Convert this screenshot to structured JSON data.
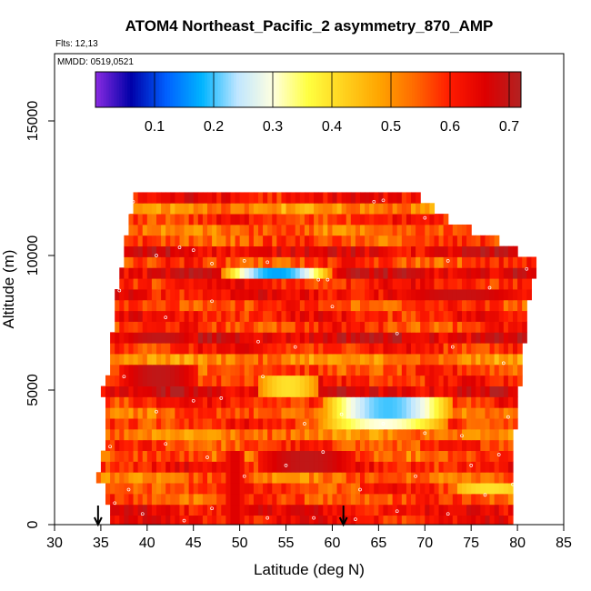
{
  "chart_data": {
    "type": "heatmap",
    "title": "ATOM4 Northeast_Pacific_2 asymmetry_870_AMP",
    "flights_label": "Flts: 12,13",
    "dates_label": "MMDD: 0519,0521",
    "xlabel": "Latitude (deg N)",
    "ylabel": "Altitude (m)",
    "xlim": [
      30,
      85
    ],
    "ylim": [
      0,
      17500
    ],
    "x_ticks": [
      30,
      35,
      40,
      45,
      50,
      55,
      60,
      65,
      70,
      75,
      80,
      85
    ],
    "y_ticks": [
      0,
      5000,
      10000,
      15000
    ],
    "colorbar": {
      "range": [
        0.0,
        0.72
      ],
      "ticks": [
        "0.1",
        "0.2",
        "0.3",
        "0.4",
        "0.5",
        "0.6",
        "0.7"
      ],
      "tick_values": [
        0.1,
        0.2,
        0.3,
        0.4,
        0.5,
        0.6,
        0.7
      ],
      "colors": [
        "#8a2be2",
        "#0000a8",
        "#0060ff",
        "#00b4ff",
        "#bfe6ff",
        "#ffffe0",
        "#ffff40",
        "#ffd21e",
        "#ffa500",
        "#ff6a00",
        "#ff1a00",
        "#dd0000",
        "#b22222"
      ]
    },
    "profile_rows": [
      {
        "alt": 150,
        "x0": 36.0,
        "x1": 79.5,
        "val": 0.62
      },
      {
        "alt": 550,
        "x0": 36.0,
        "x1": 79.5,
        "val": 0.63
      },
      {
        "alt": 950,
        "x0": 35.5,
        "x1": 79.5,
        "val": 0.56
      },
      {
        "alt": 1350,
        "x0": 35.5,
        "x1": 79.5,
        "val": 0.58
      },
      {
        "alt": 1750,
        "x0": 34.5,
        "x1": 79.5,
        "val": 0.54
      },
      {
        "alt": 2150,
        "x0": 35.0,
        "x1": 79.5,
        "val": 0.61
      },
      {
        "alt": 2550,
        "x0": 35.0,
        "x1": 79.5,
        "val": 0.55
      },
      {
        "alt": 2950,
        "x0": 35.5,
        "x1": 79.5,
        "val": 0.57
      },
      {
        "alt": 3350,
        "x0": 35.5,
        "x1": 79.5,
        "val": 0.52
      },
      {
        "alt": 3750,
        "x0": 35.5,
        "x1": 80.0,
        "val": 0.59
      },
      {
        "alt": 4150,
        "x0": 35.5,
        "x1": 80.0,
        "val": 0.55
      },
      {
        "alt": 4550,
        "x0": 35.5,
        "x1": 80.0,
        "val": 0.6
      },
      {
        "alt": 4950,
        "x0": 35.0,
        "x1": 80.0,
        "val": 0.66
      },
      {
        "alt": 5350,
        "x0": 35.5,
        "x1": 80.5,
        "val": 0.6
      },
      {
        "alt": 5750,
        "x0": 36.0,
        "x1": 80.5,
        "val": 0.57
      },
      {
        "alt": 6150,
        "x0": 36.0,
        "x1": 80.5,
        "val": 0.51
      },
      {
        "alt": 6550,
        "x0": 36.0,
        "x1": 80.5,
        "val": 0.6
      },
      {
        "alt": 6950,
        "x0": 36.0,
        "x1": 81.0,
        "val": 0.67
      },
      {
        "alt": 7350,
        "x0": 36.5,
        "x1": 81.0,
        "val": 0.58
      },
      {
        "alt": 7750,
        "x0": 36.5,
        "x1": 81.0,
        "val": 0.61
      },
      {
        "alt": 8150,
        "x0": 36.5,
        "x1": 81.0,
        "val": 0.57
      },
      {
        "alt": 8550,
        "x0": 36.5,
        "x1": 81.5,
        "val": 0.63
      },
      {
        "alt": 8950,
        "x0": 37.0,
        "x1": 81.5,
        "val": 0.61
      },
      {
        "alt": 9350,
        "x0": 37.0,
        "x1": 82.0,
        "val": 0.66
      },
      {
        "alt": 9750,
        "x0": 37.5,
        "x1": 82.0,
        "val": 0.57
      },
      {
        "alt": 10150,
        "x0": 37.5,
        "x1": 80.0,
        "val": 0.65
      },
      {
        "alt": 10550,
        "x0": 37.5,
        "x1": 78.0,
        "val": 0.56
      },
      {
        "alt": 10950,
        "x0": 38.0,
        "x1": 75.0,
        "val": 0.53
      },
      {
        "alt": 11350,
        "x0": 38.0,
        "x1": 72.5,
        "val": 0.59
      },
      {
        "alt": 11750,
        "x0": 38.5,
        "x1": 71.0,
        "val": 0.5
      },
      {
        "alt": 12150,
        "x0": 38.5,
        "x1": 69.5,
        "val": 0.62
      }
    ],
    "features": [
      {
        "alt0": 9050,
        "alt1": 9500,
        "x0": 48.0,
        "x1": 59.5,
        "val": 0.17,
        "edge": 0.5
      },
      {
        "alt0": 3950,
        "alt1": 4550,
        "x0": 59.0,
        "x1": 72.5,
        "val": 0.2,
        "edge": 0.48
      },
      {
        "alt0": 3550,
        "alt1": 3950,
        "x0": 58.5,
        "x1": 72.0,
        "val": 0.3,
        "edge": 0.5
      },
      {
        "alt0": 4950,
        "alt1": 5500,
        "x0": 52.0,
        "x1": 58.0,
        "val": 0.4,
        "edge": 0.5
      },
      {
        "alt0": 1250,
        "alt1": 1650,
        "x0": 73.5,
        "x1": 80.0,
        "val": 0.4,
        "edge": 0.45
      },
      {
        "alt0": 12250,
        "alt1": 12500,
        "x0": 64.0,
        "x1": 66.0,
        "val": 0.68,
        "edge": 0.62
      },
      {
        "alt0": 2150,
        "alt1": 2550,
        "x0": 52.0,
        "x1": 62.0,
        "val": 0.7,
        "edge": 0.62
      },
      {
        "alt0": 5350,
        "alt1": 5750,
        "x0": 37.0,
        "x1": 45.0,
        "val": 0.7,
        "edge": 0.62
      },
      {
        "alt0": 6750,
        "alt1": 7150,
        "x0": 37.0,
        "x1": 45.0,
        "val": 0.7,
        "edge": 0.63
      },
      {
        "alt0": 8350,
        "alt1": 8750,
        "x0": 67.0,
        "x1": 80.0,
        "val": 0.69,
        "edge": 0.62
      },
      {
        "alt0": 150,
        "alt1": 2550,
        "x0": 48.5,
        "x1": 50.0,
        "val": 0.66,
        "edge": 0.63
      }
    ],
    "arrows_at_latitude": [
      34.7,
      61.2
    ],
    "sample_points": [
      [
        38.0,
        11600
      ],
      [
        38.5,
        12000
      ],
      [
        41.0,
        10000
      ],
      [
        43.5,
        10300
      ],
      [
        45.0,
        10200
      ],
      [
        47.0,
        9700
      ],
      [
        50.5,
        9800
      ],
      [
        53.0,
        9750
      ],
      [
        58.5,
        9100
      ],
      [
        59.5,
        9100
      ],
      [
        64.5,
        12000
      ],
      [
        65.5,
        12050
      ],
      [
        70.0,
        11400
      ],
      [
        72.5,
        9800
      ],
      [
        77.0,
        8800
      ],
      [
        81.0,
        9500
      ],
      [
        37.0,
        8700
      ],
      [
        42.0,
        7700
      ],
      [
        47.0,
        8300
      ],
      [
        52.0,
        6800
      ],
      [
        56.0,
        6600
      ],
      [
        60.0,
        8100
      ],
      [
        67.0,
        7100
      ],
      [
        73.0,
        6600
      ],
      [
        78.5,
        6000
      ],
      [
        37.5,
        5500
      ],
      [
        41.0,
        4200
      ],
      [
        45.0,
        4600
      ],
      [
        48.0,
        4700
      ],
      [
        52.5,
        5500
      ],
      [
        57.0,
        3750
      ],
      [
        61.0,
        4100
      ],
      [
        65.5,
        3750
      ],
      [
        70.0,
        3400
      ],
      [
        74.0,
        3300
      ],
      [
        79.0,
        4000
      ],
      [
        36.0,
        2900
      ],
      [
        38.0,
        1300
      ],
      [
        42.0,
        3000
      ],
      [
        46.5,
        2500
      ],
      [
        50.5,
        1800
      ],
      [
        55.0,
        2200
      ],
      [
        59.0,
        2700
      ],
      [
        63.0,
        1300
      ],
      [
        69.0,
        1800
      ],
      [
        75.0,
        2200
      ],
      [
        78.0,
        2600
      ],
      [
        36.5,
        800
      ],
      [
        39.5,
        400
      ],
      [
        44.0,
        150
      ],
      [
        47.0,
        600
      ],
      [
        53.0,
        250
      ],
      [
        58.0,
        250
      ],
      [
        62.5,
        200
      ],
      [
        67.0,
        500
      ],
      [
        72.5,
        400
      ],
      [
        76.5,
        1100
      ],
      [
        79.5,
        1500
      ]
    ]
  }
}
